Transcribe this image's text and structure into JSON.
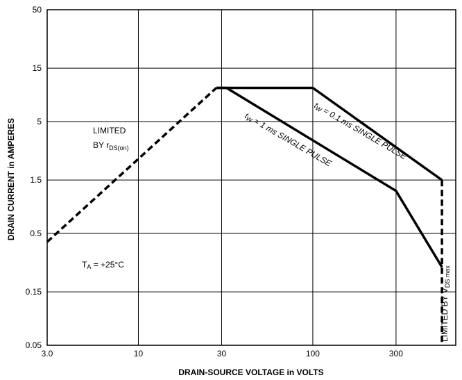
{
  "chart_data": {
    "type": "line",
    "title": "",
    "xlabel": "DRAIN-SOURCE VOLTAGE in VOLTS",
    "ylabel": "DRAIN CURRENT in AMPERES",
    "x_scale": "log",
    "y_scale": "log",
    "xlim": [
      3,
      660
    ],
    "ylim": [
      0.05,
      50
    ],
    "x_ticks": [
      3,
      10,
      30,
      100,
      300
    ],
    "x_tick_labels": [
      "3.0",
      "10",
      "30",
      "100",
      "300"
    ],
    "y_ticks": [
      0.05,
      0.15,
      0.5,
      1.5,
      5,
      15,
      50
    ],
    "y_tick_labels": [
      "0.05",
      "0.15",
      "0.5",
      "1.5",
      "5",
      "15",
      "50"
    ],
    "grid": true,
    "series": [
      {
        "name": "LIMITED BY rDS(on)",
        "style": "dashed",
        "x": [
          3,
          28
        ],
        "y": [
          0.42,
          10
        ]
      },
      {
        "name": "tw = 0.1 ms SINGLE PULSE",
        "style": "solid",
        "x": [
          28,
          100,
          550
        ],
        "y": [
          10,
          10,
          1.5
        ]
      },
      {
        "name": "tw = 1 ms SINGLE PULSE",
        "style": "solid",
        "x": [
          28,
          32,
          300,
          550
        ],
        "y": [
          10,
          10,
          1.2,
          0.25
        ]
      },
      {
        "name": "LIMITED BY VDS max",
        "style": "dashed",
        "x": [
          550,
          550
        ],
        "y": [
          1.5,
          0.05
        ]
      }
    ],
    "annotations": {
      "rds_line1": "LIMITED",
      "rds_line2": "BY r",
      "rds_sub": "DS(on)",
      "ta_prefix": "T",
      "ta_sub": "A",
      "ta_value": " = +25°C",
      "pulse_01_prefix": "t",
      "pulse_01_sub": "W",
      "pulse_01_text": " = 0.1 ms SINGLE PULSE",
      "pulse_1_prefix": "t",
      "pulse_1_sub": "W",
      "pulse_1_text": " = 1 ms SINGLE PULSE",
      "vds_prefix": "LIMITED BY V",
      "vds_sub": "DS max"
    }
  }
}
